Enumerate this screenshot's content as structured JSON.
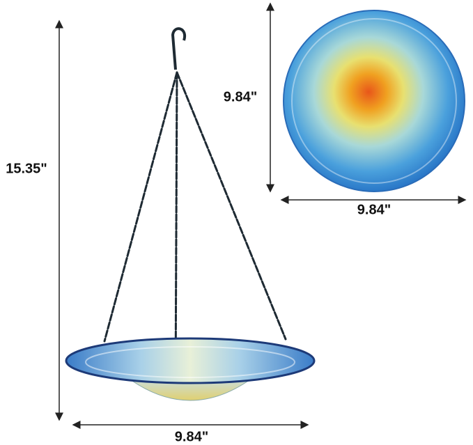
{
  "dimensions": {
    "height": "15.35\"",
    "top_view_height": "9.84\"",
    "top_view_width": "9.84\"",
    "bowl_width": "9.84\""
  }
}
